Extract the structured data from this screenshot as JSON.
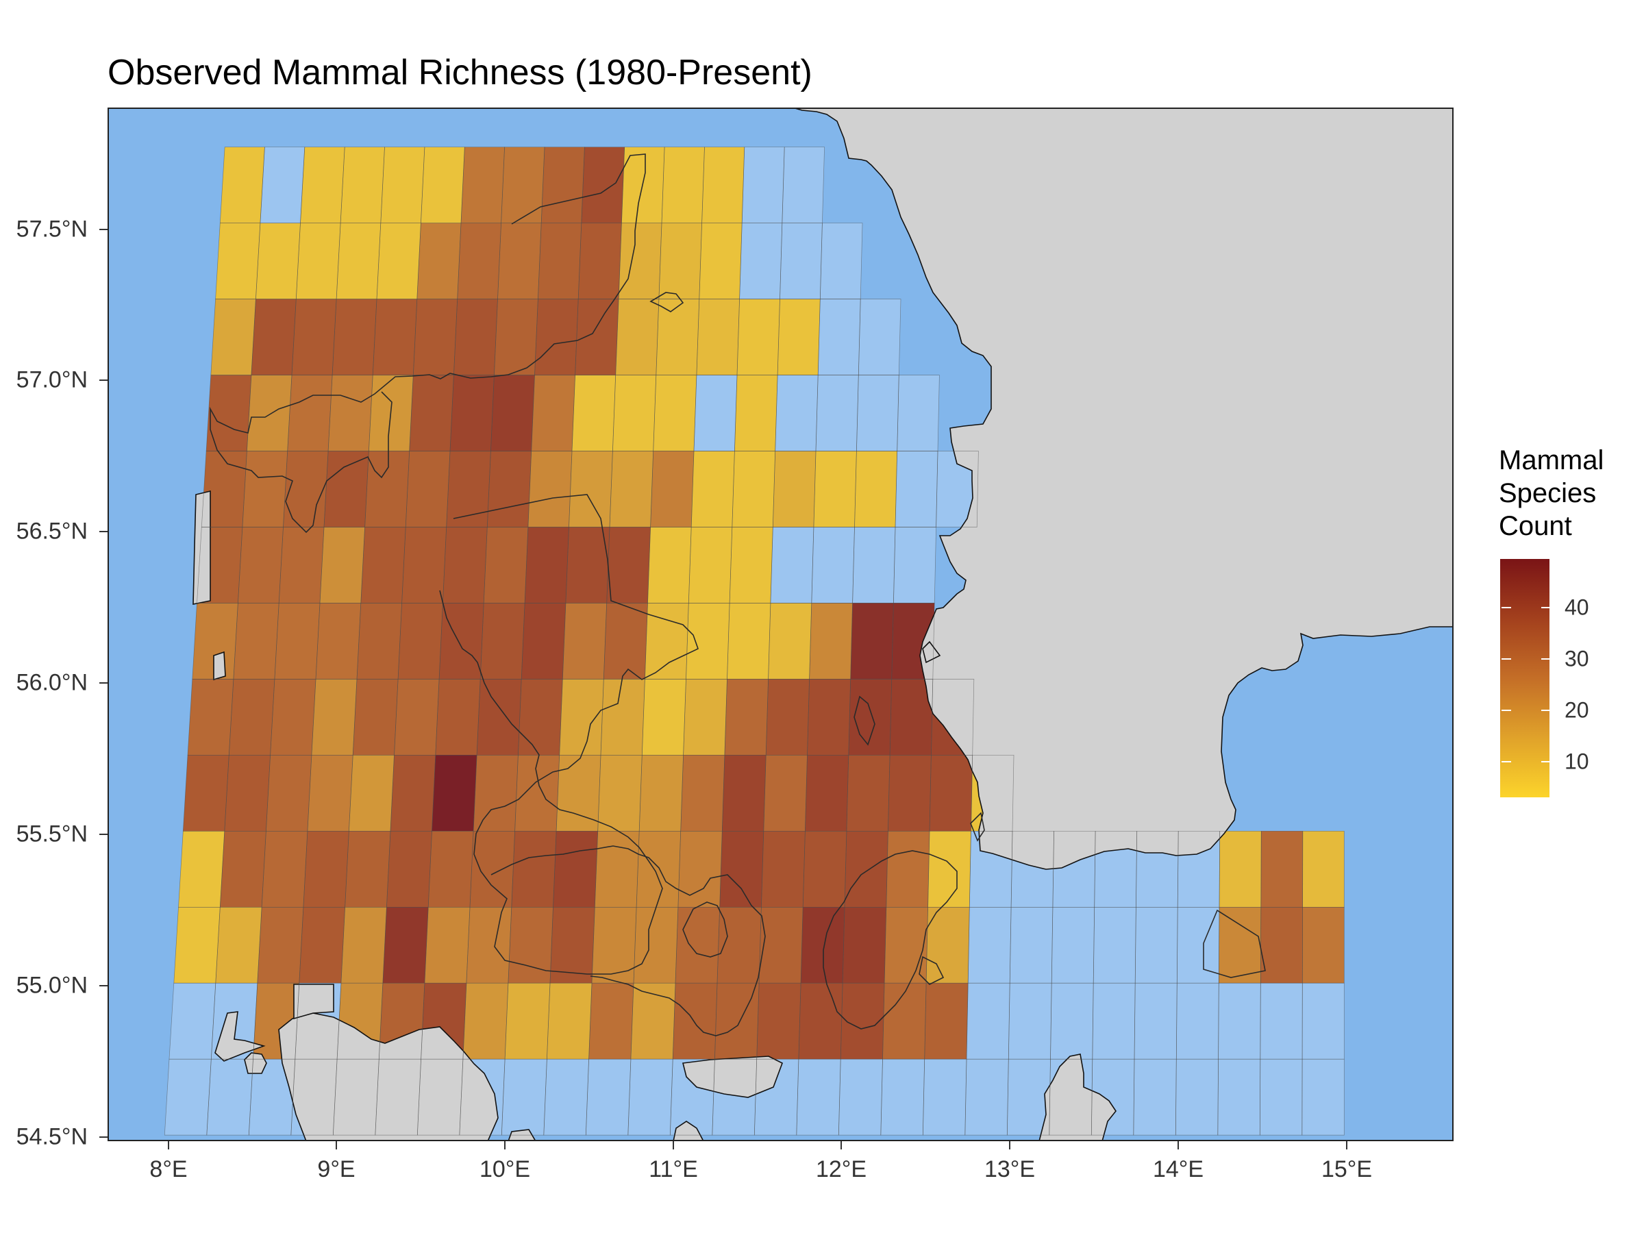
{
  "title": "Observed Mammal Richness (1980-Present)",
  "colors": {
    "sea": "#82b6eb",
    "empty_cell": "#9cc5f0",
    "land": "#d1d1d1",
    "low": "#fcd42b",
    "high": "#7a1416"
  },
  "axes": {
    "y_labels": [
      "57.5°N",
      "57.0°N",
      "56.5°N",
      "56.0°N",
      "55.5°N",
      "55.0°N",
      "54.5°N"
    ],
    "x_labels": [
      "8°E",
      "9°E",
      "10°E",
      "11°E",
      "12°E",
      "13°E",
      "14°E",
      "15°E"
    ]
  },
  "legend": {
    "title_lines": [
      "Mammal",
      "Species",
      "Count"
    ],
    "ticks": [
      "40",
      "30",
      "20",
      "10"
    ]
  },
  "chart_data": {
    "type": "heatmap",
    "title": "Observed Mammal Richness (1980-Present)",
    "xlim": [
      7.65,
      15.65
    ],
    "ylim": [
      54.48,
      57.88
    ],
    "legend_position": "right",
    "grid_origin": {
      "lon": 8.0,
      "lat_top": 57.75
    },
    "cell_size": {
      "lon": 0.25,
      "lat": 0.25
    },
    "rows_north_to_south": [
      [
        5,
        0,
        5,
        5,
        5,
        5,
        24,
        24,
        30,
        36,
        5,
        5,
        5,
        0,
        0,
        null,
        null,
        null,
        null,
        null,
        null,
        null,
        null,
        null,
        null,
        null,
        null,
        null
      ],
      [
        5,
        5,
        5,
        5,
        5,
        22,
        28,
        26,
        30,
        32,
        10,
        8,
        5,
        0,
        0,
        0,
        null,
        null,
        null,
        null,
        null,
        null,
        null,
        null,
        null,
        null,
        null,
        null
      ],
      [
        12,
        34,
        32,
        32,
        32,
        32,
        34,
        30,
        34,
        34,
        10,
        7,
        7,
        5,
        5,
        0,
        0,
        null,
        null,
        null,
        null,
        null,
        null,
        null,
        null,
        null,
        null,
        null
      ],
      [
        32,
        18,
        26,
        22,
        16,
        34,
        38,
        40,
        24,
        5,
        5,
        5,
        0,
        5,
        0,
        0,
        0,
        0,
        null,
        null,
        null,
        null,
        null,
        null,
        null,
        null,
        null,
        null
      ],
      [
        30,
        26,
        30,
        34,
        30,
        30,
        34,
        34,
        20,
        15,
        14,
        22,
        5,
        5,
        10,
        5,
        5,
        0,
        0,
        null,
        null,
        null,
        null,
        null,
        null,
        null,
        null,
        null
      ],
      [
        30,
        28,
        28,
        18,
        32,
        32,
        34,
        30,
        38,
        36,
        36,
        5,
        5,
        5,
        0,
        0,
        0,
        0,
        null,
        null,
        null,
        null,
        null,
        null,
        null,
        null,
        null,
        null
      ],
      [
        22,
        26,
        26,
        26,
        30,
        32,
        36,
        34,
        38,
        24,
        30,
        7,
        5,
        5,
        7,
        20,
        44,
        44,
        null,
        null,
        null,
        null,
        null,
        null,
        null,
        null,
        null,
        null
      ],
      [
        28,
        30,
        28,
        18,
        30,
        28,
        32,
        36,
        34,
        12,
        12,
        5,
        10,
        28,
        34,
        36,
        40,
        40,
        38,
        null,
        null,
        null,
        null,
        null,
        null,
        null,
        null,
        null
      ],
      [
        32,
        32,
        28,
        22,
        16,
        34,
        50,
        28,
        26,
        16,
        14,
        16,
        26,
        38,
        28,
        38,
        34,
        36,
        36,
        5,
        null,
        null,
        null,
        null,
        null,
        null,
        null,
        null
      ],
      [
        5,
        30,
        28,
        32,
        30,
        34,
        30,
        30,
        34,
        38,
        20,
        20,
        22,
        38,
        34,
        34,
        36,
        26,
        5,
        0,
        0,
        0,
        0,
        0,
        0,
        7,
        28,
        7
      ],
      [
        5,
        10,
        28,
        32,
        18,
        42,
        20,
        22,
        28,
        34,
        20,
        20,
        28,
        30,
        30,
        42,
        40,
        24,
        12,
        0,
        0,
        0,
        0,
        0,
        0,
        20,
        30,
        24
      ],
      [
        0,
        0,
        22,
        0,
        18,
        30,
        36,
        16,
        10,
        10,
        26,
        14,
        30,
        30,
        34,
        36,
        36,
        28,
        30,
        0,
        0,
        0,
        0,
        0,
        0,
        0,
        0,
        0
      ],
      [
        0,
        0,
        0,
        0,
        0,
        0,
        0,
        0,
        0,
        0,
        0,
        0,
        0,
        0,
        0,
        0,
        0,
        0,
        0,
        0,
        0,
        0,
        0,
        0,
        0,
        0,
        0,
        0
      ]
    ],
    "color_scale": {
      "min": 1,
      "max": 49,
      "legend_breaks": [
        10,
        20,
        30,
        40
      ]
    }
  }
}
